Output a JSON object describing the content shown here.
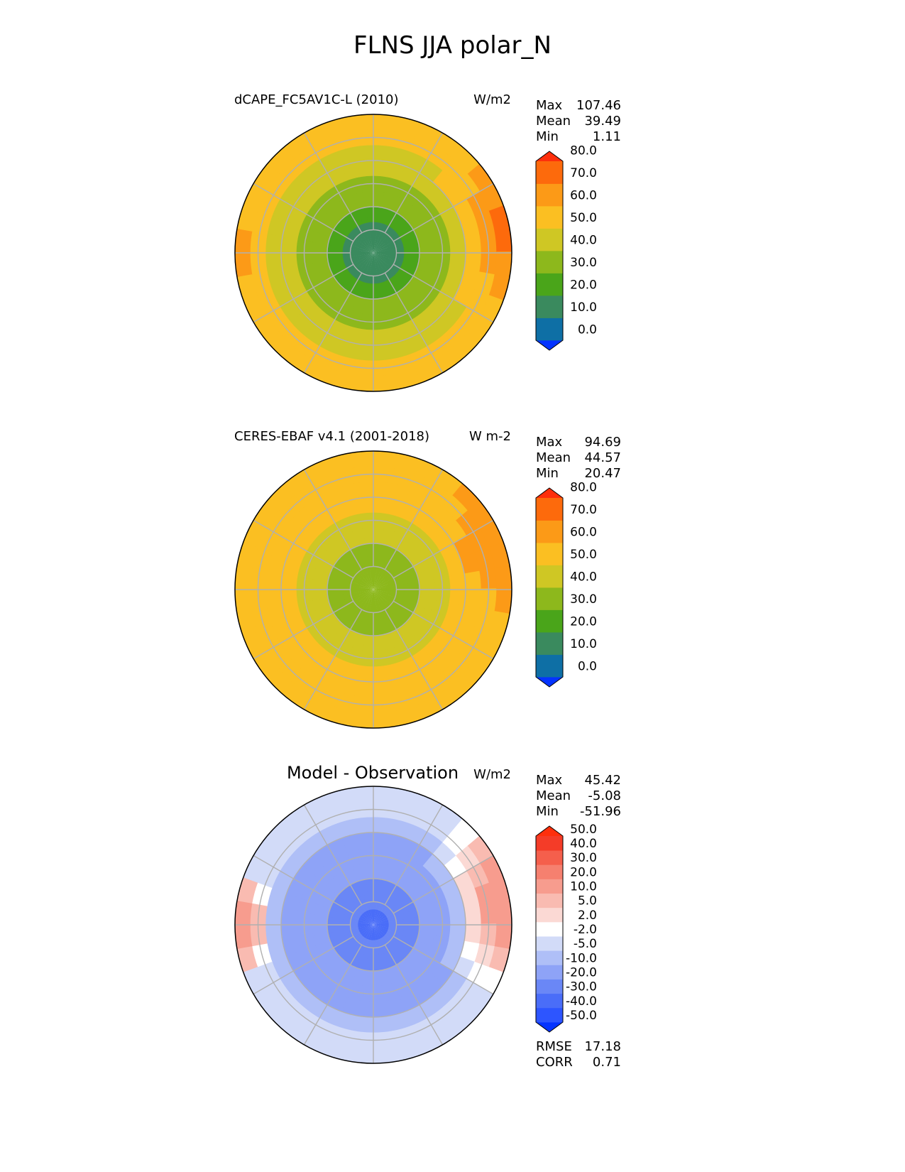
{
  "figure": {
    "title": "FLNS JJA polar_N"
  },
  "chart_data": [
    {
      "type": "heatmap",
      "projection": "north polar stereographic",
      "title": "dCAPE_FC5AV1C-L (2010)",
      "units": "W/m2",
      "stats": {
        "max_label": "Max",
        "max": "107.46",
        "mean_label": "Mean",
        "mean": "39.49",
        "min_label": "Min",
        "min": "1.11"
      },
      "colorbar": {
        "ticks": [
          "0.0",
          "10.0",
          "20.0",
          "30.0",
          "40.0",
          "50.0",
          "60.0",
          "70.0",
          "80.0"
        ],
        "colors": [
          "#0433ff",
          "#0e6fa5",
          "#3a8a5e",
          "#4aa51a",
          "#8db81c",
          "#cfc724",
          "#fbbf22",
          "#fc9a17",
          "#fd6a0c",
          "#fe2f0c"
        ]
      },
      "field": {
        "center_value": 8,
        "outer_value": 50,
        "hot_sector_value": 80,
        "hot_sector_angle_deg": 10,
        "west_hot_value": 78
      }
    },
    {
      "type": "heatmap",
      "projection": "north polar stereographic",
      "title": "CERES-EBAF v4.1 (2001-2018)",
      "units": "W m-2",
      "stats": {
        "max_label": "Max",
        "max": "94.69",
        "mean_label": "Mean",
        "mean": "44.57",
        "min_label": "Min",
        "min": "20.47"
      },
      "colorbar": {
        "ticks": [
          "0.0",
          "10.0",
          "20.0",
          "30.0",
          "40.0",
          "50.0",
          "60.0",
          "70.0",
          "80.0"
        ],
        "colors": [
          "#0433ff",
          "#0e6fa5",
          "#3a8a5e",
          "#4aa51a",
          "#8db81c",
          "#cfc724",
          "#fbbf22",
          "#fc9a17",
          "#fd6a0c",
          "#fe2f0c"
        ]
      },
      "field": {
        "center_value": 30,
        "outer_value": 55,
        "hot_sector_value": 72,
        "hot_sector_angle_deg": 20,
        "west_hot_value": 62
      }
    },
    {
      "type": "heatmap",
      "projection": "north polar stereographic",
      "title": "Model - Observation",
      "units": "W/m2",
      "stats": {
        "max_label": "Max",
        "max": "45.42",
        "mean_label": "Mean",
        "mean": "-5.08",
        "min_label": "Min",
        "min": "-51.96"
      },
      "colorbar": {
        "ticks": [
          "-50.0",
          "-40.0",
          "-30.0",
          "-20.0",
          "-10.0",
          "-5.0",
          "-2.0",
          "2.0",
          "5.0",
          "10.0",
          "20.0",
          "30.0",
          "40.0",
          "50.0"
        ],
        "colors": [
          "#0433ff",
          "#2d55ff",
          "#4a6df8",
          "#6a87f6",
          "#8ea3f7",
          "#afbff7",
          "#d2dbf8",
          "#ffffff",
          "#fbd9d4",
          "#f9bbb1",
          "#f79c8e",
          "#f6806f",
          "#f55f4c",
          "#f43c28",
          "#fe2f0c"
        ]
      },
      "field": {
        "center_value": -35,
        "outer_value": -5,
        "hot_sector_value": 25,
        "hot_sector_angle_deg": 10,
        "west_hot_value": 28
      },
      "metrics": {
        "rmse_label": "RMSE",
        "rmse": "17.18",
        "corr_label": "CORR",
        "corr": "0.71"
      }
    }
  ]
}
